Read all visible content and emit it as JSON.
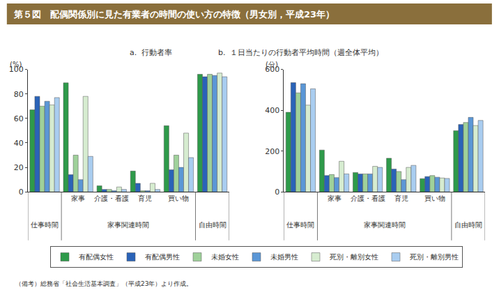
{
  "title": "第５図　配偶関係別に見た有業者の時間の使い方の特徴（男女別，平成23年）",
  "note": "（備考）総務省「社会生活基本調査」（平成23年）より作成。",
  "legend": "bottom",
  "chart_data": [
    {
      "type": "bar",
      "title": "a.  行動者率",
      "y_label": "(%)",
      "categories": [
        null,
        "家事",
        "介護・看護",
        "育児",
        "買い物",
        null
      ],
      "category_groups": [
        {
          "label": "仕事時間",
          "span": [
            0,
            0
          ]
        },
        {
          "label": "家事関連時間",
          "span": [
            1,
            4
          ]
        },
        {
          "label": "自由時間",
          "span": [
            5,
            5
          ]
        }
      ],
      "ylim": [
        0,
        100
      ],
      "yticks": [
        0,
        20,
        40,
        60,
        80,
        100
      ],
      "grid": false,
      "series": [
        {
          "name": "有配偶女性",
          "color": "#2e9a4a",
          "values": [
            67,
            89,
            5,
            17,
            54,
            96
          ]
        },
        {
          "name": "有配偶男性",
          "color": "#2a63b8",
          "values": [
            78,
            14,
            2,
            7,
            18,
            94
          ]
        },
        {
          "name": "未婚女性",
          "color": "#9fd19a",
          "values": [
            70,
            30,
            2,
            1,
            30,
            96
          ]
        },
        {
          "name": "未婚男性",
          "color": "#5b97d6",
          "values": [
            74,
            10,
            1,
            1,
            20,
            95
          ]
        },
        {
          "name": "死別・離別女性",
          "color": "#d6ecd0",
          "values": [
            71,
            78,
            4,
            7,
            48,
            97
          ]
        },
        {
          "name": "死別・離別男性",
          "color": "#a9cdf0",
          "values": [
            77,
            29,
            2,
            2,
            28,
            94
          ]
        }
      ]
    },
    {
      "type": "bar",
      "title": "b.  １日当たりの行動者平均時間（週全体平均）",
      "y_label": "(分)",
      "categories": [
        null,
        "家事",
        "介護・看護",
        "育児",
        "買い物",
        null
      ],
      "category_groups": [
        {
          "label": "仕事時間",
          "span": [
            0,
            0
          ]
        },
        {
          "label": "家事関連時間",
          "span": [
            1,
            4
          ]
        },
        {
          "label": "自由時間",
          "span": [
            5,
            5
          ]
        }
      ],
      "ylim": [
        0,
        600
      ],
      "yticks": [
        0,
        200,
        400,
        600
      ],
      "grid": false,
      "series": [
        {
          "name": "有配偶女性",
          "color": "#2e9a4a",
          "values": [
            390,
            205,
            95,
            165,
            65,
            300
          ]
        },
        {
          "name": "有配偶男性",
          "color": "#2a63b8",
          "values": [
            535,
            80,
            88,
            112,
            75,
            330
          ]
        },
        {
          "name": "未婚女性",
          "color": "#9fd19a",
          "values": [
            485,
            85,
            88,
            100,
            80,
            340
          ]
        },
        {
          "name": "未婚男性",
          "color": "#5b97d6",
          "values": [
            530,
            70,
            88,
            60,
            72,
            365
          ]
        },
        {
          "name": "死別・離別女性",
          "color": "#d6ecd0",
          "values": [
            425,
            150,
            125,
            120,
            68,
            325
          ]
        },
        {
          "name": "死別・離別男性",
          "color": "#a9cdf0",
          "values": [
            505,
            88,
            120,
            130,
            66,
            350
          ]
        }
      ]
    }
  ]
}
